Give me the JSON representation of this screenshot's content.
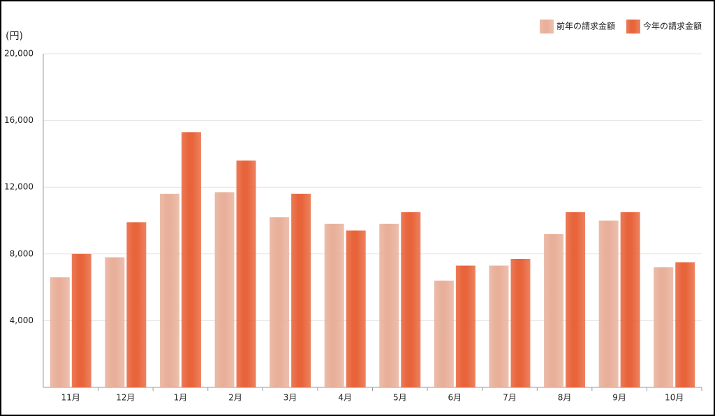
{
  "chart_data": {
    "type": "bar",
    "y_label": "(円)",
    "categories": [
      "11月",
      "12月",
      "1月",
      "2月",
      "3月",
      "4月",
      "5月",
      "6月",
      "7月",
      "8月",
      "9月",
      "10月"
    ],
    "series": [
      {
        "name": "前年の請求金額",
        "color": "#e8b09a",
        "values": [
          6600,
          7800,
          11600,
          11700,
          10200,
          9800,
          9800,
          6400,
          7300,
          9200,
          10000,
          7200
        ]
      },
      {
        "name": "今年の請求金額",
        "color": "#e8643a",
        "values": [
          8000,
          9900,
          15300,
          13600,
          11600,
          9400,
          10500,
          7300,
          7700,
          10500,
          10500,
          7500
        ]
      }
    ],
    "ylim": [
      0,
      20000
    ],
    "yticks": [
      {
        "value": 4000,
        "label": "4,000"
      },
      {
        "value": 8000,
        "label": "8,000"
      },
      {
        "value": 12000,
        "label": "12,000"
      },
      {
        "value": 16000,
        "label": "16,000"
      },
      {
        "value": 20000,
        "label": "20,000"
      }
    ],
    "grid": true,
    "legend": "top-right"
  }
}
